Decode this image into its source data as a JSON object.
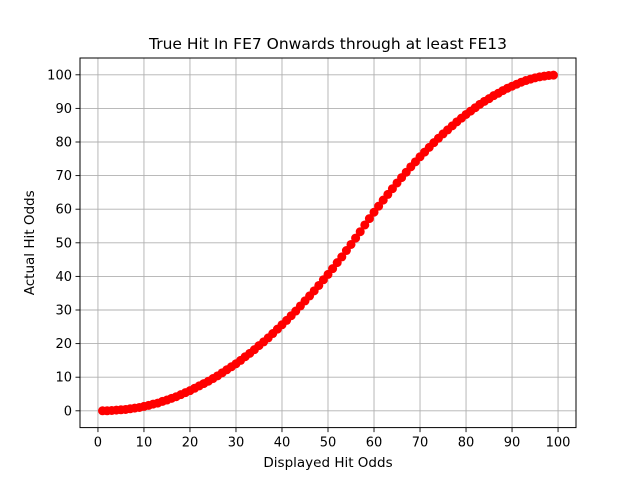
{
  "chart_data": {
    "type": "scatter",
    "title": "True Hit In FE7 Onwards through at least FE13",
    "xlabel": "Displayed Hit Odds",
    "ylabel": "Actual Hit Odds",
    "xlim": [
      -3.9,
      103.9
    ],
    "ylim": [
      -5,
      105
    ],
    "xticks": [
      0,
      10,
      20,
      30,
      40,
      50,
      60,
      70,
      80,
      90,
      100
    ],
    "yticks": [
      0,
      10,
      20,
      30,
      40,
      50,
      60,
      70,
      80,
      90,
      100
    ],
    "grid": true,
    "marker_color": "#ff0000",
    "series": [
      {
        "x": [
          1,
          2,
          3,
          4,
          5,
          6,
          7,
          8,
          9,
          10,
          11,
          12,
          13,
          14,
          15,
          16,
          17,
          18,
          19,
          20,
          21,
          22,
          23,
          24,
          25,
          26,
          27,
          28,
          29,
          30,
          31,
          32,
          33,
          34,
          35,
          36,
          37,
          38,
          39,
          40,
          41,
          42,
          43,
          44,
          45,
          46,
          47,
          48,
          49,
          50,
          51,
          52,
          53,
          54,
          55,
          56,
          57,
          58,
          59,
          60,
          61,
          62,
          63,
          64,
          65,
          66,
          67,
          68,
          69,
          70,
          71,
          72,
          73,
          74,
          75,
          76,
          77,
          78,
          79,
          80,
          81,
          82,
          83,
          84,
          85,
          86,
          87,
          88,
          89,
          90,
          91,
          92,
          93,
          94,
          95,
          96,
          97,
          98,
          99
        ],
        "y": [
          0.0,
          0.0,
          0.1,
          0.2,
          0.3,
          0.4,
          0.6,
          0.8,
          1.0,
          1.3,
          1.6,
          2.0,
          2.3,
          2.8,
          3.2,
          3.7,
          4.2,
          4.8,
          5.4,
          6.0,
          6.7,
          7.4,
          8.1,
          8.8,
          9.6,
          10.4,
          11.3,
          12.2,
          13.1,
          14.0,
          15.0,
          16.1,
          17.1,
          18.2,
          19.4,
          20.5,
          21.7,
          23.0,
          24.3,
          25.6,
          26.9,
          28.3,
          29.7,
          31.2,
          32.7,
          34.2,
          35.7,
          37.3,
          39.0,
          40.6,
          42.3,
          44.1,
          45.8,
          47.7,
          49.5,
          51.4,
          53.3,
          55.3,
          57.2,
          59.1,
          60.9,
          62.7,
          64.4,
          66.1,
          67.8,
          69.4,
          71.0,
          72.6,
          74.1,
          75.6,
          77.0,
          78.4,
          79.8,
          81.1,
          82.4,
          83.6,
          84.8,
          86.0,
          87.1,
          88.2,
          89.2,
          90.2,
          91.2,
          92.1,
          92.9,
          93.8,
          94.5,
          95.3,
          96.0,
          96.6,
          97.2,
          97.8,
          98.3,
          98.7,
          99.1,
          99.4,
          99.6,
          99.8,
          99.9
        ]
      }
    ]
  }
}
